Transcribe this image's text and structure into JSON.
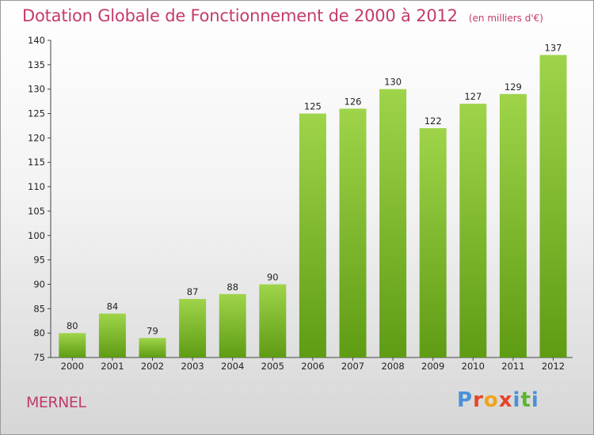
{
  "title": "Dotation Globale de Fonctionnement de 2000 à 2012",
  "unit": "(en milliers d'€)",
  "commune": "MERNEL",
  "logo": {
    "text": "Proxiti",
    "colors": [
      "#4a90d9",
      "#e8432a",
      "#f2a31b",
      "#e8432a",
      "#4a90d9",
      "#5ab52f",
      "#4a90d9"
    ]
  },
  "colors": {
    "bar_light": "#9fd44a",
    "bar_dark": "#5e9c14",
    "title": "#c43a6d"
  },
  "chart_data": {
    "type": "bar",
    "categories": [
      "2000",
      "2001",
      "2002",
      "2003",
      "2004",
      "2005",
      "2006",
      "2007",
      "2008",
      "2009",
      "2010",
      "2011",
      "2012"
    ],
    "values": [
      80,
      84,
      79,
      87,
      88,
      90,
      125,
      126,
      130,
      122,
      127,
      129,
      137
    ],
    "ylim": [
      75,
      140
    ],
    "yticks": [
      75,
      80,
      85,
      90,
      95,
      100,
      105,
      110,
      115,
      120,
      125,
      130,
      135,
      140
    ],
    "grid": false
  }
}
